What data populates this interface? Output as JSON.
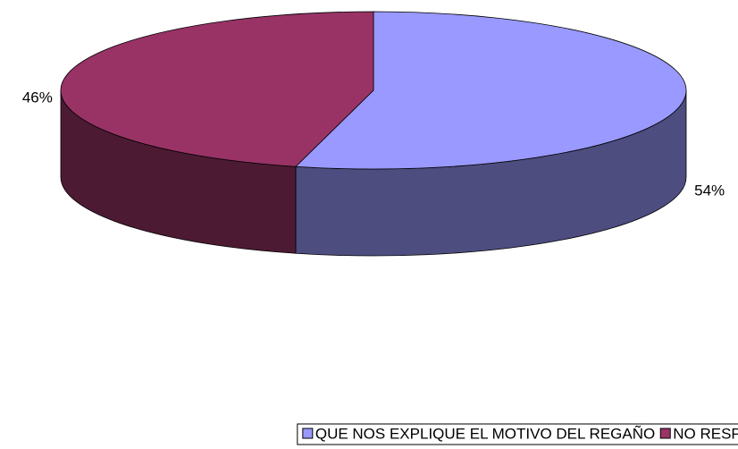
{
  "chart_data": {
    "type": "pie3d",
    "categories": [
      "QUE NOS EXPLIQUE EL MOTIVO DEL REGAÑO",
      "NO RESPONDEN"
    ],
    "values": [
      54,
      46
    ],
    "value_labels": [
      "54%",
      "46%"
    ],
    "colors": [
      "#9999ff",
      "#993366"
    ],
    "side_colors": [
      "#4d4d80",
      "#4d1a33"
    ],
    "legend": "bottom"
  }
}
